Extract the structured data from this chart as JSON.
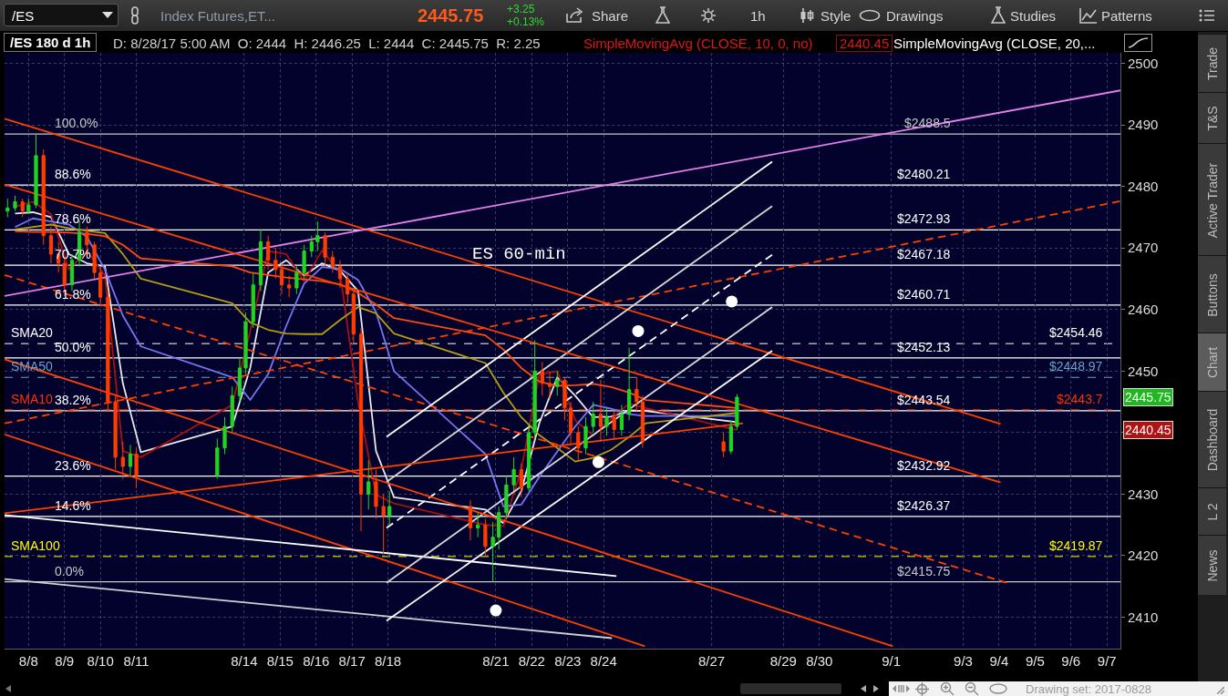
{
  "chart_data": {
    "type": "candlestick",
    "title": "/ES 180 d 1h",
    "subtitle": "D: 8/28/17 5:00 AM  O: 2444  H: 2446.25  L: 2444  C: 2445.75  R: 2.25",
    "annotations": [
      "/ES",
      "Index Futures,ET...",
      "2445.75",
      "+3.25",
      "+0.13%",
      "Share",
      "1h",
      "Style",
      "Drawings",
      "Studies",
      "Patterns",
      "SimpleMovingAvg (CLOSE, 10, 0, no)",
      "2440.45",
      "SimpleMovingAvg (CLOSE, 20,...",
      "ES 60-min",
      "Trade",
      "T&S",
      "Active Trader",
      "Buttons",
      "Chart",
      "Dashboard",
      "L 2",
      "News",
      "Drawing set: 2017-0828",
      "2445.75",
      "2440.45",
      {
        "text": "100.0%",
        "x": "2017-08-09T04:00",
        "y": 2488.5
      },
      {
        "text": "88.6%",
        "x": "2017-08-09T04:00",
        "y": 2480.21
      },
      {
        "text": "78.6%",
        "x": "2017-08-09T04:00",
        "y": 2472.93
      },
      {
        "text": "70.7%",
        "x": "2017-08-09T04:00",
        "y": 2467.18
      },
      {
        "text": "61.8%",
        "x": "2017-08-09T04:00",
        "y": 2460.71
      },
      {
        "text": "50.0%",
        "x": "2017-08-09T04:00",
        "y": 2452.13
      },
      {
        "text": "38.2%",
        "x": "2017-08-09T04:00",
        "y": 2443.54
      },
      {
        "text": "23.6%",
        "x": "2017-08-09T04:00",
        "y": 2432.92
      },
      {
        "text": "14.6%",
        "x": "2017-08-09T04:00",
        "y": 2426.37
      },
      {
        "text": "0.0%",
        "x": "2017-08-09T04:00",
        "y": 2415.75
      },
      {
        "text": "SMA20",
        "x": "2017-08-07T23:00",
        "y": 2454.46
      },
      {
        "text": "SMA50",
        "x": "2017-08-07T23:00",
        "y": 2448.97
      },
      {
        "text": "SMA10",
        "x": "2017-08-07T23:00",
        "y": 2443.7
      },
      {
        "text": "SMA100",
        "x": "2017-08-07T23:00",
        "y": 2419.87
      }
    ],
    "x": [
      "2017-08-07T22:00",
      "2017-08-08T03:00",
      "2017-08-08T08:00",
      "2017-08-08T12:00",
      "2017-08-08T17:00",
      "2017-08-08T22:00",
      "2017-08-09T03:00",
      "2017-08-09T08:00",
      "2017-08-09T12:00",
      "2017-08-09T17:00",
      "2017-08-09T22:00",
      "2017-08-10T03:00",
      "2017-08-10T08:00",
      "2017-08-10T12:00",
      "2017-08-10T17:00",
      "2017-08-10T22:00",
      "2017-08-11T03:00",
      "2017-08-11T08:00",
      "2017-08-11T12:00",
      "2017-08-13T18:00",
      "2017-08-13T23:00",
      "2017-08-14T04:00",
      "2017-08-14T09:00",
      "2017-08-14T13:00",
      "2017-08-14T18:00",
      "2017-08-14T23:00",
      "2017-08-15T04:00",
      "2017-08-15T09:00",
      "2017-08-15T13:00",
      "2017-08-15T18:00",
      "2017-08-15T23:00",
      "2017-08-16T04:00",
      "2017-08-16T09:00",
      "2017-08-16T13:00",
      "2017-08-16T18:00",
      "2017-08-16T23:00",
      "2017-08-17T04:00",
      "2017-08-17T09:00",
      "2017-08-17T13:00",
      "2017-08-17T18:00",
      "2017-08-17T23:00",
      "2017-08-18T04:00",
      "2017-08-18T09:00",
      "2017-08-18T13:00",
      "2017-08-20T19:00",
      "2017-08-21T00:00",
      "2017-08-21T05:00",
      "2017-08-21T10:00",
      "2017-08-21T14:00",
      "2017-08-21T19:00",
      "2017-08-22T00:00",
      "2017-08-22T05:00",
      "2017-08-22T10:00",
      "2017-08-22T14:00",
      "2017-08-22T19:00",
      "2017-08-23T00:00",
      "2017-08-23T05:00",
      "2017-08-23T10:00",
      "2017-08-23T14:00",
      "2017-08-23T19:00",
      "2017-08-24T00:00",
      "2017-08-24T05:00",
      "2017-08-24T10:00",
      "2017-08-24T14:00",
      "2017-08-24T19:00",
      "2017-08-25T00:00",
      "2017-08-25T05:00",
      "2017-08-25T10:00",
      "2017-08-25T14:00",
      "2017-08-27T20:00",
      "2017-08-28T01:00",
      "2017-08-28T05:00"
    ],
    "ohlc": [
      [
        2476,
        2478,
        2475,
        2476.5
      ],
      [
        2476.5,
        2478.5,
        2476,
        2477.5
      ],
      [
        2477.5,
        2478,
        2475,
        2476
      ],
      [
        2476,
        2478,
        2475.5,
        2477
      ],
      [
        2477,
        2488.5,
        2476.5,
        2485
      ],
      [
        2485,
        2486,
        2470.5,
        2472
      ],
      [
        2472,
        2473.5,
        2467.5,
        2469
      ],
      [
        2469,
        2471,
        2466,
        2467.5
      ],
      [
        2467.5,
        2468.5,
        2462.5,
        2464
      ],
      [
        2464,
        2469,
        2463,
        2468
      ],
      [
        2468,
        2474.5,
        2467,
        2472.5
      ],
      [
        2472.5,
        2473.5,
        2469,
        2470.5
      ],
      [
        2470.5,
        2471,
        2465,
        2466
      ],
      [
        2466,
        2467,
        2460.5,
        2462
      ],
      [
        2462,
        2463,
        2443.5,
        2445
      ],
      [
        2445,
        2446,
        2434,
        2436
      ],
      [
        2436,
        2438.5,
        2432.5,
        2434.5
      ],
      [
        2434.5,
        2438,
        2433,
        2436.5
      ],
      [
        2436.5,
        2437.5,
        2431,
        2433
      ],
      [
        2433,
        2439,
        2432.5,
        2437.5
      ],
      [
        2437.5,
        2442.5,
        2436.5,
        2441
      ],
      [
        2441,
        2447.5,
        2440,
        2446
      ],
      [
        2446,
        2452,
        2445,
        2450.5
      ],
      [
        2450.5,
        2459.5,
        2449.5,
        2458
      ],
      [
        2458,
        2466,
        2457,
        2464
      ],
      [
        2464,
        2473,
        2463,
        2471
      ],
      [
        2471,
        2472,
        2466.5,
        2468
      ],
      [
        2468,
        2470,
        2465,
        2466.5
      ],
      [
        2466.5,
        2467.5,
        2462.5,
        2464
      ],
      [
        2464,
        2465.5,
        2462,
        2463.5
      ],
      [
        2463.5,
        2467,
        2462.5,
        2466
      ],
      [
        2466,
        2470.5,
        2465,
        2469.5
      ],
      [
        2469.5,
        2472,
        2468.5,
        2471
      ],
      [
        2471,
        2474.3,
        2469.5,
        2472
      ],
      [
        2472,
        2472.5,
        2467,
        2468.5
      ],
      [
        2468.5,
        2469.5,
        2466,
        2467
      ],
      [
        2467,
        2468,
        2463.5,
        2465
      ],
      [
        2465,
        2466,
        2461,
        2462.5
      ],
      [
        2462.5,
        2463.5,
        2454.5,
        2456
      ],
      [
        2456,
        2457,
        2424,
        2430
      ],
      [
        2430,
        2435.5,
        2427.5,
        2432
      ],
      [
        2432,
        2434,
        2426,
        2428
      ],
      [
        2428,
        2430,
        2420.3,
        2426.5
      ],
      [
        2426.5,
        2430.5,
        2425,
        2428
      ],
      [
        2428,
        2429,
        2422.5,
        2424.5
      ],
      [
        2424.5,
        2427,
        2423,
        2425
      ],
      [
        2425,
        2426,
        2420,
        2421.5
      ],
      [
        2421.5,
        2425.5,
        2415.75,
        2423
      ],
      [
        2423,
        2428,
        2421,
        2427
      ],
      [
        2427,
        2433,
        2426,
        2431.5
      ],
      [
        2431.5,
        2436,
        2430.5,
        2434
      ],
      [
        2434,
        2435,
        2429.5,
        2431
      ],
      [
        2431,
        2441.5,
        2430.5,
        2440
      ],
      [
        2440,
        2455,
        2439,
        2450
      ],
      [
        2450,
        2451.5,
        2446,
        2448
      ],
      [
        2448,
        2450,
        2445.5,
        2447.5
      ],
      [
        2447.5,
        2450,
        2446,
        2448.5
      ],
      [
        2448.5,
        2449,
        2442,
        2444
      ],
      [
        2444,
        2445,
        2438,
        2440
      ],
      [
        2440,
        2441,
        2435.5,
        2437.5
      ],
      [
        2437.5,
        2442.5,
        2436.5,
        2441
      ],
      [
        2441,
        2445,
        2440,
        2443
      ],
      [
        2443,
        2448.6,
        2438.5,
        2441
      ],
      [
        2441,
        2444,
        2439.5,
        2442.5
      ],
      [
        2442.5,
        2443.5,
        2439,
        2440.5
      ],
      [
        2440.5,
        2444.5,
        2439.5,
        2443
      ],
      [
        2443,
        2453.8,
        2442,
        2447
      ],
      [
        2447,
        2449,
        2443.5,
        2445
      ],
      [
        2445,
        2446,
        2437.5,
        2438.5
      ],
      [
        2438.5,
        2440,
        2436,
        2437
      ],
      [
        2437,
        2442,
        2436.5,
        2441
      ],
      [
        2441,
        2446.25,
        2440.5,
        2445.75
      ]
    ],
    "series": [
      {
        "type": "line",
        "color": "#e8e8e8",
        "x": [
          "2017-08-08T03:00",
          "2017-08-08T15:00",
          "2017-08-09T03:00",
          "2017-08-09T15:00",
          "2017-08-10T03:00",
          "2017-08-10T15:00",
          "2017-08-11T03:00",
          "2017-08-11T15:00",
          "2017-08-14T04:00",
          "2017-08-14T16:00",
          "2017-08-15T04:00",
          "2017-08-15T16:00",
          "2017-08-16T04:00",
          "2017-08-16T16:00",
          "2017-08-17T04:00",
          "2017-08-17T16:00",
          "2017-08-18T04:00",
          "2017-08-18T16:00",
          "2017-08-21T05:00",
          "2017-08-21T17:00",
          "2017-08-22T05:00",
          "2017-08-22T17:00",
          "2017-08-23T05:00",
          "2017-08-23T17:00",
          "2017-08-24T05:00",
          "2017-08-24T17:00",
          "2017-08-25T05:00",
          "2017-08-25T16:00",
          "2017-08-28T05:00"
        ],
        "values": [
          2475.6,
          2475.8,
          2475,
          2469,
          2467.5,
          2467,
          2448,
          2436.8,
          2441,
          2450.5,
          2466,
          2468,
          2465.5,
          2467.5,
          2466.3,
          2463,
          2437,
          2429.5,
          2427.5,
          2425.3,
          2430.5,
          2441.5,
          2449,
          2446,
          2442.5,
          2442.6,
          2443.6,
          2443.5,
          2441.7
        ]
      },
      {
        "type": "line",
        "color": "#a81010",
        "x": [
          "2017-08-08T03:00",
          "2017-08-08T15:00",
          "2017-08-09T03:00",
          "2017-08-09T15:00",
          "2017-08-10T03:00",
          "2017-08-10T15:00",
          "2017-08-11T03:00",
          "2017-08-11T15:00",
          "2017-08-14T04:00",
          "2017-08-14T16:00",
          "2017-08-15T04:00",
          "2017-08-15T16:00",
          "2017-08-16T04:00",
          "2017-08-16T16:00",
          "2017-08-17T04:00",
          "2017-08-17T16:00",
          "2017-08-18T04:00",
          "2017-08-18T16:00",
          "2017-08-21T05:00",
          "2017-08-21T17:00",
          "2017-08-22T05:00",
          "2017-08-22T17:00",
          "2017-08-23T05:00",
          "2017-08-23T17:00",
          "2017-08-24T05:00",
          "2017-08-24T17:00",
          "2017-08-25T05:00",
          "2017-08-25T16:00",
          "2017-08-28T05:00"
        ],
        "values": [
          2476.7,
          2477.5,
          2475.5,
          2466.5,
          2469.5,
          2465.5,
          2437,
          2436,
          2444.5,
          2456.5,
          2469.5,
          2469,
          2464.6,
          2469.6,
          2466,
          2445,
          2429.9,
          2428.5,
          2425,
          2424.8,
          2434,
          2449.4,
          2450,
          2442,
          2439.5,
          2442.3,
          2444.7,
          2444,
          2440.4
        ]
      },
      {
        "type": "line",
        "color": "#7676f2",
        "x": [
          "2017-08-08T03:00",
          "2017-08-08T15:00",
          "2017-08-09T03:00",
          "2017-08-09T15:00",
          "2017-08-10T03:00",
          "2017-08-10T15:00",
          "2017-08-11T03:00",
          "2017-08-11T15:00",
          "2017-08-14T04:00",
          "2017-08-14T16:00",
          "2017-08-15T04:00",
          "2017-08-15T16:00",
          "2017-08-16T04:00",
          "2017-08-16T16:00",
          "2017-08-17T04:00",
          "2017-08-17T16:00",
          "2017-08-18T04:00",
          "2017-08-18T16:00",
          "2017-08-21T05:00",
          "2017-08-21T17:00",
          "2017-08-22T05:00",
          "2017-08-22T17:00",
          "2017-08-23T05:00",
          "2017-08-23T17:00",
          "2017-08-24T05:00",
          "2017-08-24T17:00",
          "2017-08-25T05:00",
          "2017-08-25T16:00",
          "2017-08-28T05:00"
        ],
        "values": [
          2473.4,
          2474.8,
          2474.3,
          2473.8,
          2471.8,
          2466.5,
          2459,
          2454,
          2449,
          2445.3,
          2449.5,
          2457.3,
          2464.2,
          2466.9,
          2466.6,
          2464.8,
          2459.6,
          2450,
          2436.5,
          2428,
          2428.3,
          2432.8,
          2436.9,
          2441,
          2444.5,
          2443.9,
          2443,
          2442.7,
          2442.7
        ]
      },
      {
        "type": "line",
        "color": "#b39c12",
        "x": [
          "2017-08-08T03:00",
          "2017-08-08T15:00",
          "2017-08-09T03:00",
          "2017-08-09T15:00",
          "2017-08-10T03:00",
          "2017-08-10T15:00",
          "2017-08-11T03:00",
          "2017-08-11T15:00",
          "2017-08-14T04:00",
          "2017-08-14T16:00",
          "2017-08-15T04:00",
          "2017-08-15T16:00",
          "2017-08-16T04:00",
          "2017-08-16T16:00",
          "2017-08-17T04:00",
          "2017-08-17T16:00",
          "2017-08-18T04:00",
          "2017-08-18T16:00",
          "2017-08-21T05:00",
          "2017-08-21T17:00",
          "2017-08-22T05:00",
          "2017-08-22T17:00",
          "2017-08-23T05:00",
          "2017-08-23T17:00",
          "2017-08-24T05:00",
          "2017-08-24T17:00",
          "2017-08-25T05:00",
          "2017-08-25T16:00",
          "2017-08-28T05:00"
        ],
        "values": [
          2473,
          2473.4,
          2473.8,
          2473.2,
          2472.8,
          2472.4,
          2469,
          2465,
          2461,
          2457.9,
          2456.7,
          2456.1,
          2456,
          2456,
          2458.3,
          2460.4,
          2459.4,
          2456.1,
          2451.3,
          2446.5,
          2442.5,
          2439.6,
          2437.5,
          2435.3,
          2435.9,
          2437.2,
          2439.3,
          2441.5,
          2443.2
        ]
      },
      {
        "type": "line",
        "color": "#ff4a10",
        "x": [
          "2017-08-08T03:00",
          "2017-08-08T15:00",
          "2017-08-09T03:00",
          "2017-08-09T15:00",
          "2017-08-10T03:00",
          "2017-08-10T15:00",
          "2017-08-11T03:00",
          "2017-08-11T15:00",
          "2017-08-14T04:00",
          "2017-08-14T16:00",
          "2017-08-15T04:00",
          "2017-08-15T16:00",
          "2017-08-16T04:00",
          "2017-08-16T16:00",
          "2017-08-17T04:00",
          "2017-08-17T16:00",
          "2017-08-18T04:00",
          "2017-08-18T16:00",
          "2017-08-21T05:00",
          "2017-08-21T17:00",
          "2017-08-22T05:00",
          "2017-08-22T17:00",
          "2017-08-23T05:00",
          "2017-08-23T17:00",
          "2017-08-24T05:00",
          "2017-08-24T17:00",
          "2017-08-25T05:00",
          "2017-08-25T16:00",
          "2017-08-28T05:00"
        ],
        "values": [
          2472.7,
          2472.6,
          2472.6,
          2472.5,
          2472.3,
          2471.9,
          2470.5,
          2468.3,
          2467,
          2466,
          2465.6,
          2465.2,
          2464.9,
          2464.6,
          2464.1,
          2462.7,
          2460.8,
          2458.6,
          2455.8,
          2453.5,
          2450.5,
          2448.3,
          2447.6,
          2447.7,
          2447.9,
          2447.4,
          2446.5,
          2445.3,
          2444
        ]
      },
      {
        "type": "line",
        "color": "#ff4000",
        "x": [
          "2017-08-07T20:00",
          "2017-09-04T13:00"
        ],
        "values": [
          2491.0,
          2441.4
        ]
      },
      {
        "type": "line",
        "color": "#ff4000",
        "x": [
          "2017-08-07T20:00",
          "2017-08-25T15:30"
        ],
        "values": [
          2439.7,
          2405.3
        ]
      },
      {
        "type": "line",
        "color": "#ff4000",
        "line_style": "dashed",
        "x": [
          "2017-08-07T20:00",
          "2017-09-04T17:00"
        ],
        "values": [
          2465.6,
          2415.6
        ]
      },
      {
        "type": "line",
        "color": "#ff4000",
        "line_style": "dashed",
        "x": [
          "2017-08-07T20:00",
          "2017-09-07T21:00"
        ],
        "values": [
          2441.5,
          2477.6
        ]
      },
      {
        "type": "line",
        "color": "#e27fe8",
        "x": [
          "2017-08-07T20:00",
          "2017-09-07T21:00"
        ],
        "values": [
          2462.2,
          2495.6
        ]
      },
      {
        "type": "line",
        "color": "#ffffff",
        "x": [
          "2017-08-07T20:00",
          "2017-08-24T20:30"
        ],
        "values": [
          2426.6,
          2416.7
        ]
      },
      {
        "type": "line",
        "color": "#d0d0d0",
        "x": [
          "2017-08-07T20:00",
          "2017-08-24T17:30"
        ],
        "values": [
          2416.2,
          2406.6
        ]
      },
      {
        "type": "line",
        "color": "#ffffff",
        "x": [
          "2017-08-18T11:00",
          "2017-08-29T04:30"
        ],
        "values": [
          2409.4,
          2453.3
        ]
      },
      {
        "type": "line",
        "color": "#ffffff",
        "x": [
          "2017-08-18T11:00",
          "2017-08-29T04:30"
        ],
        "values": [
          2439.3,
          2484.0
        ]
      },
      {
        "type": "line",
        "color": "#d8d8d8",
        "x": [
          "2017-08-18T11:00",
          "2017-08-29T04:30"
        ],
        "values": [
          2415.6,
          2460.4
        ]
      },
      {
        "type": "line",
        "color": "#d8d8d8",
        "x": [
          "2017-08-18T11:00",
          "2017-08-29T04:30"
        ],
        "values": [
          2432.0,
          2476.8
        ]
      },
      {
        "type": "line",
        "color": "#ffffff",
        "line_style": "dashed",
        "x": [
          "2017-08-18T11:00",
          "2017-08-29T04:30"
        ],
        "values": [
          2424.5,
          2468.9
        ]
      },
      {
        "type": "line",
        "color": "#ff4000",
        "x": [
          "2017-08-07T20:00",
          "2017-09-04T13:00"
        ],
        "values": [
          2480.3,
          2431.9
        ]
      },
      {
        "type": "line",
        "color": "#ff4000",
        "x": [
          "2017-08-07T20:00",
          "2017-09-01T13:00"
        ],
        "values": [
          2451.9,
          2405.3
        ]
      },
      {
        "type": "line",
        "color": "#ff4000",
        "x": [
          "2017-08-07T20:00",
          "2017-08-28T09:00"
        ],
        "values": [
          2426.9,
          2441.5
        ]
      },
      {
        "type": "scatter",
        "color": "#ffffff",
        "marker": "circle",
        "x": [
          "2017-08-28T01:30",
          "2017-08-25T11:00",
          "2017-08-21T12:00",
          "2017-08-24T08:30"
        ],
        "values": [
          2461.3,
          2456.5,
          2411.1,
          2435.2
        ]
      }
    ],
    "ref_lines": [
      {
        "axis": "y",
        "value": 2488.5,
        "label": "$2488.5",
        "color": "#c8c8c8"
      },
      {
        "axis": "y",
        "value": 2480.21,
        "label": "$2480.21",
        "color": "#ffffff"
      },
      {
        "axis": "y",
        "value": 2472.93,
        "label": "$2472.93",
        "color": "#ffffff"
      },
      {
        "axis": "y",
        "value": 2467.18,
        "label": "$2467.18",
        "color": "#ffffff"
      },
      {
        "axis": "y",
        "value": 2460.71,
        "label": "$2460.71",
        "color": "#ffffff"
      },
      {
        "axis": "y",
        "value": 2452.13,
        "label": "$2452.13",
        "color": "#ffffff"
      },
      {
        "axis": "y",
        "value": 2443.54,
        "label": "$2443.54",
        "color": "#ffffff"
      },
      {
        "axis": "y",
        "value": 2432.92,
        "label": "$2432.92",
        "color": "#ffffff"
      },
      {
        "axis": "y",
        "value": 2426.37,
        "label": "$2426.37",
        "color": "#ffffff"
      },
      {
        "axis": "y",
        "value": 2415.75,
        "label": "$2415.75",
        "color": "#c8c8c8"
      },
      {
        "axis": "y",
        "value": 2454.46,
        "label": "$2454.46",
        "color": "#ffffff",
        "line_style": "dashed"
      },
      {
        "axis": "y",
        "value": 2448.97,
        "label": "$2448.97",
        "color": "#6aa2c8",
        "line_style": "dashed"
      },
      {
        "axis": "y",
        "value": 2443.7,
        "label": "$2443.7",
        "color": "#ff3300",
        "line_style": "dashed"
      },
      {
        "axis": "y",
        "value": 2419.87,
        "label": "$2419.87",
        "color": "#ffff00",
        "line_style": "dashed"
      }
    ],
    "xlim": [
      "2017-08-07T20:00",
      "2017-09-07T21:00"
    ],
    "ylim": [
      2404.9,
      2501.7
    ],
    "xticks": [
      {
        "value": "2017-08-08T12:00",
        "label": "8/8"
      },
      {
        "value": "2017-08-09T12:00",
        "label": "8/9"
      },
      {
        "value": "2017-08-10T12:00",
        "label": "8/10"
      },
      {
        "value": "2017-08-11T12:00",
        "label": "8/11"
      },
      {
        "value": "2017-08-14T12:00",
        "label": "8/14"
      },
      {
        "value": "2017-08-15T12:00",
        "label": "8/15"
      },
      {
        "value": "2017-08-16T12:00",
        "label": "8/16"
      },
      {
        "value": "2017-08-17T12:00",
        "label": "8/17"
      },
      {
        "value": "2017-08-18T12:00",
        "label": "8/18"
      },
      {
        "value": "2017-08-21T12:00",
        "label": "8/21"
      },
      {
        "value": "2017-08-22T12:00",
        "label": "8/22"
      },
      {
        "value": "2017-08-23T12:00",
        "label": "8/23"
      },
      {
        "value": "2017-08-24T12:00",
        "label": "8/24"
      },
      {
        "value": "2017-08-27T12:00",
        "label": "8/27"
      },
      {
        "value": "2017-08-29T12:00",
        "label": "8/29"
      },
      {
        "value": "2017-08-30T12:00",
        "label": "8/30"
      },
      {
        "value": "2017-09-01T12:00",
        "label": "9/1"
      },
      {
        "value": "2017-09-03T12:00",
        "label": "9/3"
      },
      {
        "value": "2017-09-04T12:00",
        "label": "9/4"
      },
      {
        "value": "2017-09-05T12:00",
        "label": "9/5"
      },
      {
        "value": "2017-09-06T12:00",
        "label": "9/6"
      },
      {
        "value": "2017-09-07T12:00",
        "label": "9/7"
      }
    ],
    "yticks": [
      2410,
      2420,
      2430,
      {
        "value": 2440,
        "label": null
      },
      2450,
      2460,
      2470,
      2480,
      2490,
      2500
    ],
    "grid": true
  }
}
